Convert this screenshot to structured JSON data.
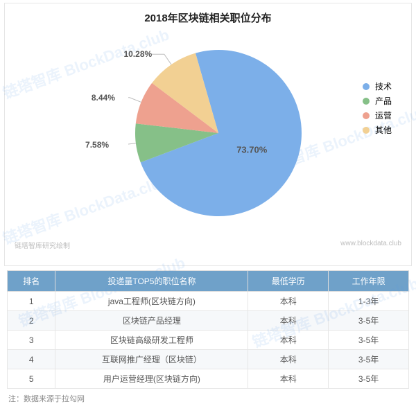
{
  "chart": {
    "type": "pie",
    "title": "2018年区块链相关职位分布",
    "background_color": "#ffffff",
    "border_color": "#e6e6e6",
    "series": [
      {
        "label": "技术",
        "value": 73.7,
        "display": "73.70%",
        "color": "#7cafe9"
      },
      {
        "label": "产品",
        "value": 7.58,
        "display": "7.58%",
        "color": "#86c088"
      },
      {
        "label": "运营",
        "value": 8.44,
        "display": "8.44%",
        "color": "#eea18f"
      },
      {
        "label": "其他",
        "value": 10.28,
        "display": "10.28%",
        "color": "#f2d093"
      }
    ],
    "label_fontsize": 12,
    "label_color": "#555555",
    "title_fontsize": 15,
    "footer_left": "链塔智库研究绘制",
    "footer_right": "www.blockdata.club",
    "footer_color": "#bdbdbd",
    "watermark_text": "链塔智库 BlockData.club",
    "watermark_color": "rgba(93,160,232,0.12)"
  },
  "table": {
    "columns": [
      "排名",
      "投递量TOP5的职位名称",
      "最低学历",
      "工作年限"
    ],
    "col_widths": [
      "12%",
      "48%",
      "20%",
      "20%"
    ],
    "header_bg": "#6fa1c9",
    "header_fg": "#ffffff",
    "row_alt_bg": "#f6f8fa",
    "border_color": "#e6e6e6",
    "rows": [
      [
        "1",
        "java工程师(区块链方向)",
        "本科",
        "1-3年"
      ],
      [
        "2",
        "区块链产品经理",
        "本科",
        "3-5年"
      ],
      [
        "3",
        "区块链高级研发工程师",
        "本科",
        "3-5年"
      ],
      [
        "4",
        "互联网推广经理（区块链）",
        "本科",
        "3-5年"
      ],
      [
        "5",
        "用户运营经理(区块链方向)",
        "本科",
        "3-5年"
      ]
    ],
    "note": "注：数据来源于拉勾网"
  }
}
